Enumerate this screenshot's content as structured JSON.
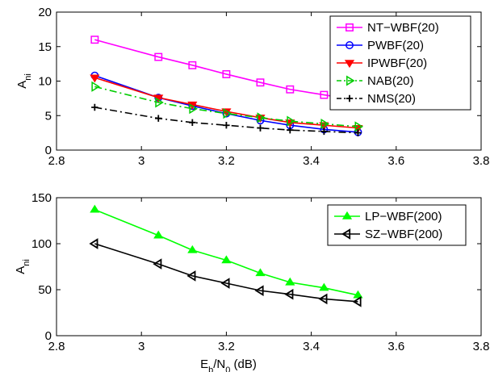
{
  "chart_data": [
    {
      "type": "line",
      "title": "",
      "xlabel": "",
      "ylabel": "A_ni",
      "xlim": [
        2.8,
        3.8
      ],
      "ylim": [
        0,
        20
      ],
      "xticks": [
        "2.8",
        "3",
        "3.2",
        "3.4",
        "3.6",
        "3.8"
      ],
      "yticks": [
        "0",
        "5",
        "10",
        "15",
        "20"
      ],
      "grid": false,
      "legend_position": "top-right",
      "series": [
        {
          "name": "NT−WBF(20)",
          "color": "#ff00ff",
          "marker": "square",
          "dash": "solid",
          "x": [
            2.89,
            3.04,
            3.12,
            3.2,
            3.28,
            3.35,
            3.43,
            3.51
          ],
          "y": [
            16.0,
            13.5,
            12.3,
            11.0,
            9.8,
            8.8,
            8.0,
            7.2
          ]
        },
        {
          "name": "PWBF(20)",
          "color": "#0000ff",
          "marker": "circle",
          "dash": "solid",
          "x": [
            2.89,
            3.04,
            3.12,
            3.2,
            3.28,
            3.35,
            3.43,
            3.51
          ],
          "y": [
            10.8,
            7.6,
            6.4,
            5.3,
            4.3,
            3.6,
            3.0,
            2.6
          ]
        },
        {
          "name": "IPWBF(20)",
          "color": "#ff0000",
          "marker": "triangle-down",
          "dash": "solid",
          "x": [
            2.89,
            3.04,
            3.12,
            3.2,
            3.28,
            3.35,
            3.43,
            3.51
          ],
          "y": [
            10.5,
            7.6,
            6.6,
            5.6,
            4.7,
            4.0,
            3.6,
            3.2
          ]
        },
        {
          "name": "NAB(20)",
          "color": "#00cc00",
          "marker": "triangle-right",
          "dash": "dashdot",
          "x": [
            2.89,
            3.04,
            3.12,
            3.2,
            3.28,
            3.35,
            3.43,
            3.51
          ],
          "y": [
            9.2,
            6.9,
            6.0,
            5.3,
            4.7,
            4.2,
            3.8,
            3.4
          ]
        },
        {
          "name": "NMS(20)",
          "color": "#000000",
          "marker": "plus",
          "dash": "dashdot",
          "x": [
            2.89,
            3.04,
            3.12,
            3.2,
            3.28,
            3.35,
            3.43,
            3.51
          ],
          "y": [
            6.2,
            4.6,
            4.0,
            3.6,
            3.2,
            2.9,
            2.7,
            2.5
          ]
        }
      ]
    },
    {
      "type": "line",
      "title": "",
      "xlabel": "E_b/N_0 (dB)",
      "ylabel": "A_ni",
      "xlim": [
        2.8,
        3.8
      ],
      "ylim": [
        0,
        150
      ],
      "xticks": [
        "2.8",
        "3",
        "3.2",
        "3.4",
        "3.6",
        "3.8"
      ],
      "yticks": [
        "0",
        "50",
        "100",
        "150"
      ],
      "grid": false,
      "legend_position": "top-right",
      "series": [
        {
          "name": "LP−WBF(200)",
          "color": "#00ff00",
          "marker": "triangle-up",
          "dash": "solid",
          "x": [
            2.89,
            3.04,
            3.12,
            3.2,
            3.28,
            3.35,
            3.43,
            3.51
          ],
          "y": [
            137,
            109,
            93,
            82,
            68,
            58,
            52,
            44
          ]
        },
        {
          "name": "SZ−WBF(200)",
          "color": "#000000",
          "marker": "triangle-left",
          "dash": "solid",
          "x": [
            2.89,
            3.04,
            3.12,
            3.2,
            3.28,
            3.35,
            3.43,
            3.51
          ],
          "y": [
            100,
            78,
            65,
            57,
            49,
            45,
            40,
            37
          ]
        }
      ]
    }
  ]
}
